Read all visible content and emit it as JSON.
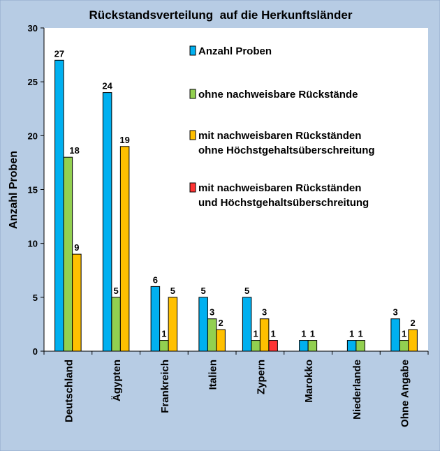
{
  "chart_data": {
    "type": "bar",
    "title": "Rückstandsverteilung  auf die Herkunftsländer",
    "xlabel": "",
    "ylabel": "Anzahl Proben",
    "ylim": [
      0,
      30
    ],
    "yticks": [
      0,
      5,
      10,
      15,
      20,
      25,
      30
    ],
    "grid": false,
    "legend_position": "top-right",
    "categories": [
      "Deutschland",
      "Ägypten",
      "Frankreich",
      "Italien",
      "Zypern",
      "Marokko",
      "Niederlande",
      "Ohne Angabe"
    ],
    "series": [
      {
        "name": "Anzahl Proben",
        "color": "#00B0F0",
        "values": [
          27,
          24,
          6,
          5,
          5,
          1,
          1,
          3
        ]
      },
      {
        "name": "ohne nachweisbare Rückstände",
        "color": "#92D050",
        "values": [
          18,
          5,
          1,
          3,
          1,
          1,
          1,
          1
        ]
      },
      {
        "name": [
          "mit nachweisbaren Rückständen",
          "ohne Höchstgehaltsüberschreitung"
        ],
        "color": "#FFC000",
        "values": [
          9,
          19,
          5,
          2,
          3,
          null,
          null,
          2
        ]
      },
      {
        "name": [
          "mit nachweisbaren Rückständen",
          "und Höchstgehaltsüberschreitung"
        ],
        "color": "#FF3333",
        "values": [
          null,
          null,
          null,
          null,
          1,
          null,
          null,
          null
        ]
      }
    ]
  },
  "colors": {
    "frame": "#B7CCE4",
    "plot": "#FFFFFF"
  }
}
